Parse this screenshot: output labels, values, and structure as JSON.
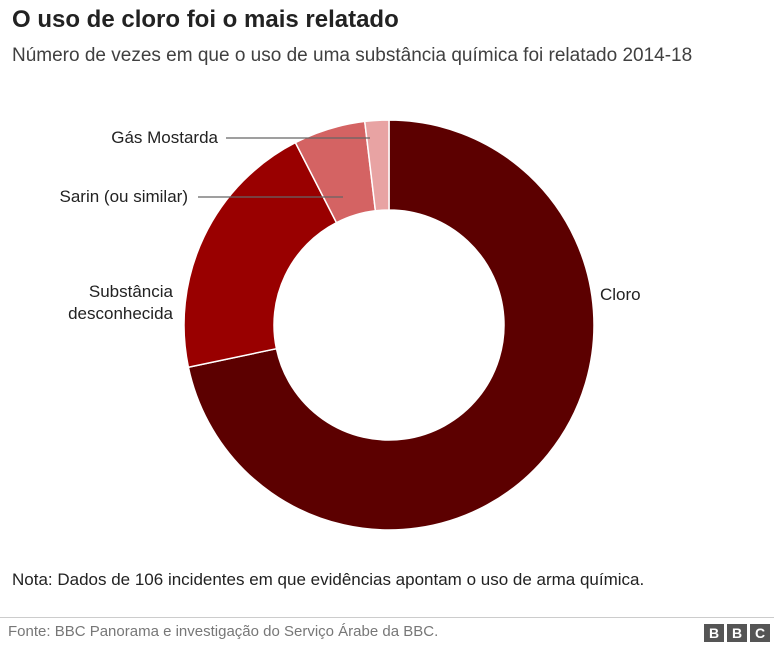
{
  "chart_data": {
    "type": "donut",
    "title": "O uso de cloro foi o mais relatado",
    "subtitle": "Número de vezes em que o uso de uma substância química foi relatado 2014-18",
    "categories": [
      "Cloro",
      "Substância desconhecida",
      "Sarin (ou similar)",
      "Gás Mostarda"
    ],
    "values": [
      76,
      22,
      6,
      2
    ],
    "colors": [
      "#5c0000",
      "#990000",
      "#d46363",
      "#e8a3a3"
    ],
    "note": "Nota: Dados de 106 incidentes em que evidências apontam o uso de arma química.",
    "source": "Fonte: BBC Panorama e investigação do Serviço Árabe da BBC.",
    "logo": [
      "B",
      "B",
      "C"
    ]
  }
}
